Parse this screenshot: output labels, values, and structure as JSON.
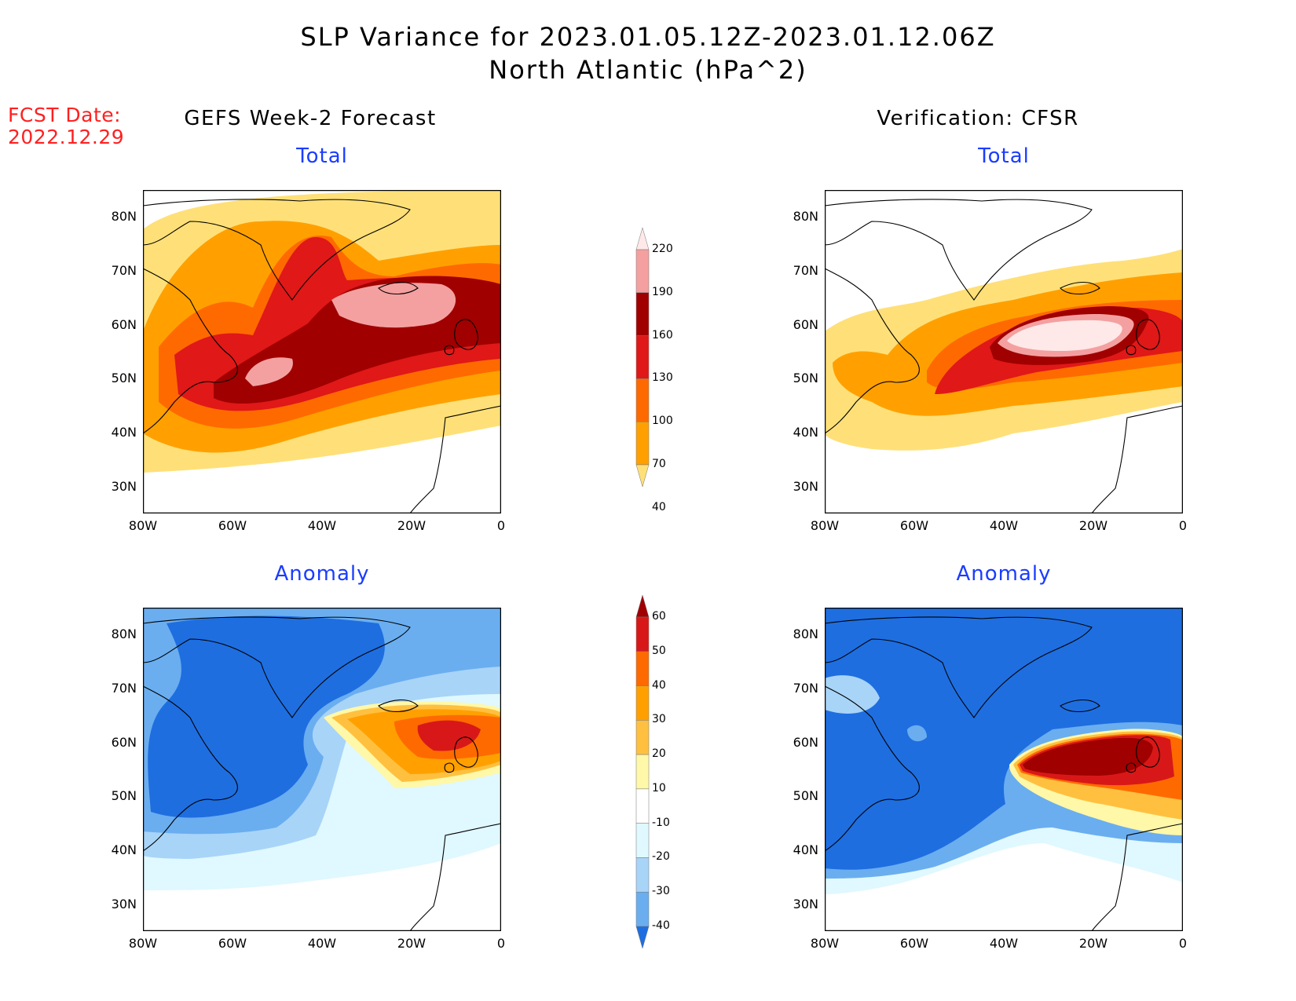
{
  "header": {
    "title_line1": "SLP Variance for 2023.01.05.12Z-2023.01.12.06Z",
    "title_line2": "North Atlantic (hPa^2)"
  },
  "fcst": {
    "line1": "FCST Date:",
    "line2": "2022.12.29"
  },
  "columns": {
    "left_title": "GEFS Week-2 Forecast",
    "right_title": "Verification: CFSR"
  },
  "panels": {
    "total_label": "Total",
    "anomaly_label": "Anomaly"
  },
  "axes": {
    "lat_labels": [
      "80N",
      "70N",
      "60N",
      "50N",
      "40N",
      "30N"
    ],
    "lon_labels": [
      "80W",
      "60W",
      "40W",
      "20W",
      "0"
    ]
  },
  "colorbars": {
    "total": {
      "levels": [
        "220",
        "190",
        "160",
        "130",
        "100",
        "70",
        "40"
      ],
      "colors": [
        "#ffe8e8",
        "#f4a0a0",
        "#a00000",
        "#e01818",
        "#ff6a00",
        "#ffa000",
        "#ffe078"
      ]
    },
    "anomaly": {
      "levels": [
        "60",
        "50",
        "40",
        "30",
        "20",
        "10",
        "-10",
        "-20",
        "-30",
        "-40"
      ],
      "colors": [
        "#a00000",
        "#d81818",
        "#ff6a00",
        "#ffa000",
        "#ffc040",
        "#fff8a8",
        "#ffffff",
        "#e0f8ff",
        "#a8d4f8",
        "#6aaef0",
        "#1e6ee0"
      ]
    }
  },
  "chart_data": {
    "type": "heatmap",
    "region": "North Atlantic",
    "units": "hPa^2",
    "lon_range": [
      -80,
      0
    ],
    "lat_range": [
      25,
      85
    ],
    "panels": [
      {
        "column": "GEFS Week-2 Forecast",
        "field": "Total",
        "max_level": "190-220"
      },
      {
        "column": "Verification: CFSR",
        "field": "Total",
        "max_level": ">220"
      },
      {
        "column": "GEFS Week-2 Forecast",
        "field": "Anomaly",
        "max_level": "50-60"
      },
      {
        "column": "Verification: CFSR",
        "field": "Anomaly",
        "max_level": ">60"
      }
    ]
  }
}
